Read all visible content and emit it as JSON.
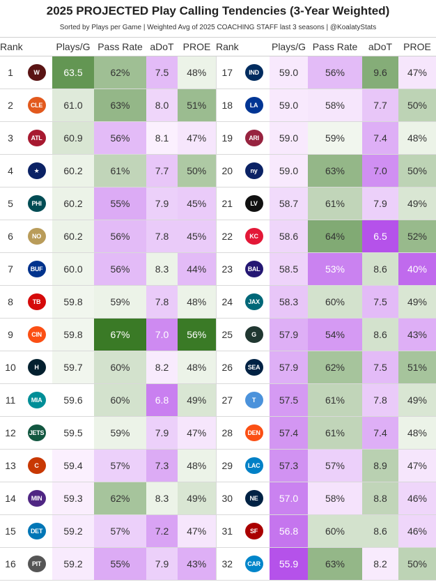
{
  "title": "2025 PROJECTED Play Calling Tendencies (3-Year Weighted)",
  "subtitle": "Sorted by Plays per Game | Weighted Avg of 2025 COACHING STAFF last 3 seasons | @KoalatyStats",
  "headers": [
    "Rank",
    "Plays/G",
    "Pass Rate",
    "aDoT",
    "PROE"
  ],
  "palette": {
    "green_strong": "#3a7a26",
    "green_light": "#f5f9f2",
    "purple_strong": "#b552ea",
    "purple_light": "#fcf3fe"
  },
  "chart_data": {
    "type": "table",
    "columns": [
      "Rank",
      "Team",
      "Plays/G",
      "Pass Rate",
      "aDoT",
      "PROE"
    ],
    "rows": [
      {
        "rank": "1",
        "team": "WAS",
        "plays": "63.5",
        "pass": "62%",
        "adot": "7.5",
        "proe": "48%",
        "logo_color": "#5a1414",
        "logo_text": "W",
        "cp": 0.78,
        "cr": 0.46,
        "ca": -0.35,
        "ce": 0.05
      },
      {
        "rank": "2",
        "team": "CLE",
        "plays": "61.0",
        "pass": "63%",
        "adot": "8.0",
        "proe": "51%",
        "logo_color": "#e2591d",
        "logo_text": "CLE",
        "cp": 0.12,
        "cr": 0.52,
        "ca": -0.18,
        "ce": 0.48
      },
      {
        "rank": "3",
        "team": "ATL",
        "plays": "60.9",
        "pass": "56%",
        "adot": "8.1",
        "proe": "47%",
        "logo_color": "#a71930",
        "logo_text": "ATL",
        "cp": 0.15,
        "cr": -0.35,
        "ca": -0.02,
        "ce": -0.08
      },
      {
        "rank": "4",
        "team": "DAL",
        "plays": "60.2",
        "pass": "61%",
        "adot": "7.7",
        "proe": "50%",
        "logo_color": "#0b2265",
        "logo_text": "★",
        "cp": 0.05,
        "cr": 0.28,
        "ca": -0.28,
        "ce": 0.38
      },
      {
        "rank": "5",
        "team": "PHI",
        "plays": "60.2",
        "pass": "55%",
        "adot": "7.9",
        "proe": "45%",
        "logo_color": "#004c54",
        "logo_text": "PHI",
        "cp": 0.05,
        "cr": -0.45,
        "ca": -0.22,
        "ce": -0.25
      },
      {
        "rank": "6",
        "team": "NO",
        "plays": "60.2",
        "pass": "56%",
        "adot": "7.8",
        "proe": "45%",
        "logo_color": "#b99c5a",
        "logo_text": "NO",
        "cp": 0.05,
        "cr": -0.35,
        "ca": -0.25,
        "ce": -0.25
      },
      {
        "rank": "7",
        "team": "BUF",
        "plays": "60.0",
        "pass": "56%",
        "adot": "8.3",
        "proe": "44%",
        "logo_color": "#00338d",
        "logo_text": "BUF",
        "cp": 0.03,
        "cr": -0.35,
        "ca": 0.05,
        "ce": -0.35
      },
      {
        "rank": "8",
        "team": "TB",
        "plays": "59.8",
        "pass": "59%",
        "adot": "7.8",
        "proe": "48%",
        "logo_color": "#d50a0a",
        "logo_text": "TB",
        "cp": 0.02,
        "cr": 0.05,
        "ca": -0.25,
        "ce": 0.05
      },
      {
        "rank": "9",
        "team": "CIN",
        "plays": "59.8",
        "pass": "67%",
        "adot": "7.0",
        "proe": "56%",
        "logo_color": "#fb4f14",
        "logo_text": "CIN",
        "cp": 0.02,
        "cr": 1.0,
        "ca": -0.65,
        "ce": 1.0
      },
      {
        "rank": "10",
        "team": "HOU",
        "plays": "59.7",
        "pass": "60%",
        "adot": "8.2",
        "proe": "48%",
        "logo_color": "#03202f",
        "logo_text": "H",
        "cp": 0.02,
        "cr": 0.18,
        "ca": -0.05,
        "ce": 0.05
      },
      {
        "rank": "11",
        "team": "MIA",
        "plays": "59.6",
        "pass": "60%",
        "adot": "6.8",
        "proe": "49%",
        "logo_color": "#008e97",
        "logo_text": "MIA",
        "cp": 0.01,
        "cr": 0.18,
        "ca": -0.72,
        "ce": 0.15
      },
      {
        "rank": "12",
        "team": "NYJ",
        "plays": "59.5",
        "pass": "59%",
        "adot": "7.9",
        "proe": "47%",
        "logo_color": "#125740",
        "logo_text": "JETS",
        "cp": 0.0,
        "cr": 0.05,
        "ca": -0.22,
        "ce": -0.08
      },
      {
        "rank": "13",
        "team": "CHI",
        "plays": "59.4",
        "pass": "57%",
        "adot": "7.3",
        "proe": "48%",
        "logo_color": "#c83803",
        "logo_text": "C",
        "cp": -0.02,
        "cr": -0.22,
        "ca": -0.45,
        "ce": 0.05
      },
      {
        "rank": "14",
        "team": "MIN",
        "plays": "59.3",
        "pass": "62%",
        "adot": "8.3",
        "proe": "49%",
        "logo_color": "#4f2683",
        "logo_text": "MIN",
        "cp": -0.03,
        "cr": 0.42,
        "ca": 0.05,
        "ce": 0.15
      },
      {
        "rank": "15",
        "team": "DET",
        "plays": "59.2",
        "pass": "57%",
        "adot": "7.2",
        "proe": "47%",
        "logo_color": "#0076b6",
        "logo_text": "DET",
        "cp": -0.05,
        "cr": -0.22,
        "ca": -0.5,
        "ce": -0.08
      },
      {
        "rank": "16",
        "team": "PIT",
        "plays": "59.2",
        "pass": "55%",
        "adot": "7.9",
        "proe": "43%",
        "logo_color": "#555555",
        "logo_text": "PIT",
        "cp": -0.05,
        "cr": -0.45,
        "ca": -0.22,
        "ce": -0.42
      },
      {
        "rank": "17",
        "team": "IND",
        "plays": "59.0",
        "pass": "56%",
        "adot": "9.6",
        "proe": "47%",
        "logo_color": "#002c5f",
        "logo_text": "IND",
        "cp": -0.06,
        "cr": -0.35,
        "ca": 0.6,
        "ce": -0.08
      },
      {
        "rank": "18",
        "team": "LAR",
        "plays": "59.0",
        "pass": "58%",
        "adot": "7.7",
        "proe": "50%",
        "logo_color": "#003594",
        "logo_text": "LA",
        "cp": -0.06,
        "cr": -0.08,
        "ca": -0.28,
        "ce": 0.3
      },
      {
        "rank": "19",
        "team": "ARI",
        "plays": "59.0",
        "pass": "59%",
        "adot": "7.4",
        "proe": "48%",
        "logo_color": "#97233f",
        "logo_text": "ARI",
        "cp": -0.06,
        "cr": 0.02,
        "ca": -0.42,
        "ce": 0.05
      },
      {
        "rank": "20",
        "team": "NYG",
        "plays": "59.0",
        "pass": "63%",
        "adot": "7.0",
        "proe": "50%",
        "logo_color": "#0b2265",
        "logo_text": "ny",
        "cp": -0.06,
        "cr": 0.52,
        "ca": -0.62,
        "ce": 0.3
      },
      {
        "rank": "21",
        "team": "LV",
        "plays": "58.7",
        "pass": "61%",
        "adot": "7.9",
        "proe": "49%",
        "logo_color": "#111111",
        "logo_text": "LV",
        "cp": -0.15,
        "cr": 0.28,
        "ca": -0.22,
        "ce": 0.15
      },
      {
        "rank": "22",
        "team": "KC",
        "plays": "58.6",
        "pass": "64%",
        "adot": "6.5",
        "proe": "52%",
        "logo_color": "#e31837",
        "logo_text": "KC",
        "cp": -0.18,
        "cr": 0.62,
        "ca": -1.0,
        "ce": 0.5
      },
      {
        "rank": "23",
        "team": "BAL",
        "plays": "58.5",
        "pass": "53%",
        "adot": "8.6",
        "proe": "40%",
        "logo_color": "#241773",
        "logo_text": "BAL",
        "cp": -0.2,
        "cr": -0.7,
        "ca": 0.18,
        "ce": -0.85
      },
      {
        "rank": "24",
        "team": "JAX",
        "plays": "58.3",
        "pass": "60%",
        "adot": "7.5",
        "proe": "49%",
        "logo_color": "#006778",
        "logo_text": "JAX",
        "cp": -0.28,
        "cr": 0.18,
        "ca": -0.35,
        "ce": 0.15
      },
      {
        "rank": "25",
        "team": "GB",
        "plays": "57.9",
        "pass": "54%",
        "adot": "8.6",
        "proe": "43%",
        "logo_color": "#203731",
        "logo_text": "G",
        "cp": -0.42,
        "cr": -0.55,
        "ca": 0.18,
        "ce": -0.42
      },
      {
        "rank": "26",
        "team": "SEA",
        "plays": "57.9",
        "pass": "62%",
        "adot": "7.5",
        "proe": "51%",
        "logo_color": "#002244",
        "logo_text": "SEA",
        "cp": -0.42,
        "cr": 0.42,
        "ca": -0.35,
        "ce": 0.42
      },
      {
        "rank": "27",
        "team": "TEN",
        "plays": "57.5",
        "pass": "61%",
        "adot": "7.8",
        "proe": "49%",
        "logo_color": "#4b92db",
        "logo_text": "T",
        "cp": -0.55,
        "cr": 0.28,
        "ca": -0.25,
        "ce": 0.15
      },
      {
        "rank": "28",
        "team": "DEN",
        "plays": "57.4",
        "pass": "61%",
        "adot": "7.4",
        "proe": "48%",
        "logo_color": "#fb4f14",
        "logo_text": "DEN",
        "cp": -0.58,
        "cr": 0.28,
        "ca": -0.42,
        "ce": 0.05
      },
      {
        "rank": "29",
        "team": "LAC",
        "plays": "57.3",
        "pass": "57%",
        "adot": "8.9",
        "proe": "47%",
        "logo_color": "#0080c6",
        "logo_text": "LAC",
        "cp": -0.6,
        "cr": -0.22,
        "ca": 0.32,
        "ce": -0.08
      },
      {
        "rank": "30",
        "team": "NE",
        "plays": "57.0",
        "pass": "58%",
        "adot": "8.8",
        "proe": "46%",
        "logo_color": "#002244",
        "logo_text": "NE",
        "cp": -0.7,
        "cr": -0.1,
        "ca": 0.28,
        "ce": -0.18
      },
      {
        "rank": "31",
        "team": "SF",
        "plays": "56.8",
        "pass": "60%",
        "adot": "8.6",
        "proe": "46%",
        "logo_color": "#aa0000",
        "logo_text": "SF",
        "cp": -0.78,
        "cr": 0.18,
        "ca": 0.18,
        "ce": -0.18
      },
      {
        "rank": "32",
        "team": "CAR",
        "plays": "55.9",
        "pass": "63%",
        "adot": "8.2",
        "proe": "50%",
        "logo_color": "#0085ca",
        "logo_text": "CAR",
        "cp": -1.0,
        "cr": 0.52,
        "ca": -0.05,
        "ce": 0.3
      }
    ]
  }
}
